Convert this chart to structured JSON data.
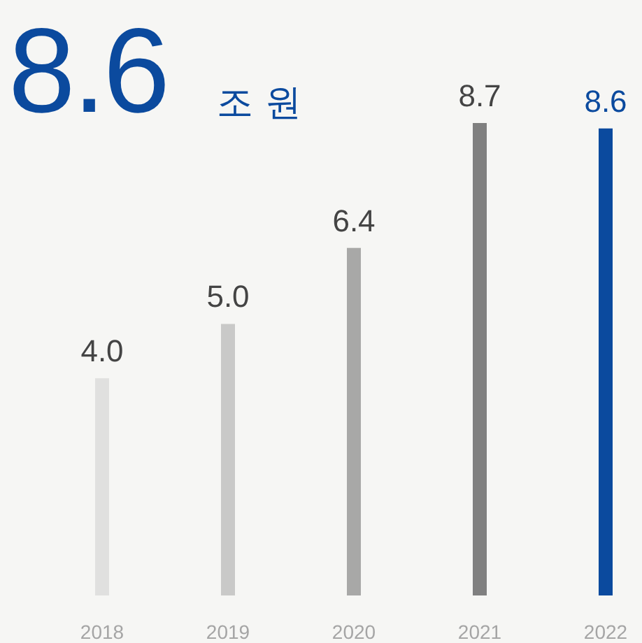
{
  "chart_data": {
    "type": "bar",
    "title": "8.6",
    "subtitle": "조 원",
    "categories": [
      "2018",
      "2019",
      "2020",
      "2021",
      "2022"
    ],
    "values": [
      4.0,
      5.0,
      6.4,
      8.7,
      8.6
    ],
    "colors": [
      "#e0e0df",
      "#c9c9c8",
      "#a8a8a7",
      "#808080",
      "#0b4a9e"
    ],
    "value_labels": [
      "4.0",
      "5.0",
      "6.4",
      "8.7",
      "8.6"
    ]
  }
}
